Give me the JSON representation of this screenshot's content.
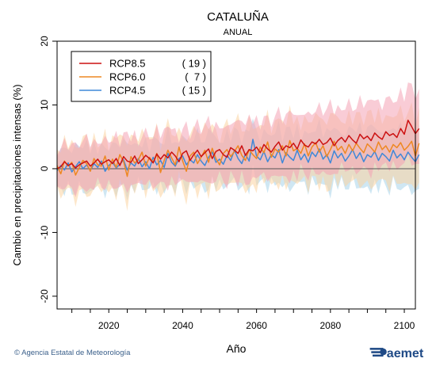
{
  "chart_data": {
    "type": "line",
    "title": "CATALUÑA",
    "subtitle": "ANUAL",
    "xlabel": "Año",
    "ylabel": "Cambio en precipitaciones intensas (%)",
    "xlim": [
      2006,
      2103
    ],
    "ylim": [
      -22,
      20
    ],
    "x_ticks": [
      2020,
      2040,
      2060,
      2080,
      2100
    ],
    "y_ticks": [
      20,
      10,
      0,
      -10,
      -20
    ],
    "legend_position": "top-left",
    "series": [
      {
        "name": "RCP8.5",
        "count": "( 19 )",
        "color": "#cc1111",
        "band_color": "#f4a3b4",
        "start_year": 2006,
        "values": [
          0.0,
          0.3,
          1.1,
          0.5,
          0.8,
          0.1,
          0.6,
          0.9,
          1.2,
          0.4,
          0.9,
          1.5,
          0.7,
          1.1,
          1.4,
          0.8,
          1.6,
          0.5,
          1.9,
          1.2,
          1.0,
          2.0,
          0.8,
          1.4,
          2.1,
          1.6,
          0.9,
          2.3,
          1.5,
          2.2,
          1.7,
          2.6,
          2.0,
          1.1,
          2.4,
          2.8,
          1.3,
          2.2,
          2.9,
          1.9,
          2.5,
          3.1,
          1.6,
          2.7,
          3.0,
          2.2,
          1.8,
          3.3,
          2.9,
          2.4,
          3.6,
          2.1,
          3.0,
          2.8,
          3.4,
          2.5,
          3.8,
          3.1,
          2.6,
          3.5,
          4.2,
          2.9,
          3.6,
          3.3,
          4.0,
          3.1,
          4.5,
          3.7,
          3.4,
          4.2,
          3.9,
          4.6,
          3.8,
          4.1,
          4.8,
          3.6,
          4.4,
          4.9,
          4.2,
          5.2,
          4.5,
          4.0,
          5.4,
          4.7,
          5.1,
          4.4,
          5.6,
          5.0,
          4.6,
          5.8,
          5.2,
          5.5,
          4.9,
          6.3,
          5.4,
          7.6,
          6.6,
          5.5,
          6.3
        ]
      },
      {
        "name": "RCP6.0",
        "count": "(  7 )",
        "color": "#ee8822",
        "band_color": "#fcd3a0",
        "start_year": 2006,
        "values": [
          0.5,
          -0.8,
          1.2,
          0.4,
          1.0,
          -1.0,
          0.2,
          1.3,
          0.8,
          -0.4,
          1.6,
          0.6,
          0.4,
          2.0,
          -0.2,
          1.5,
          0.2,
          2.2,
          1.1,
          -1.2,
          1.9,
          0.9,
          1.4,
          2.6,
          0.4,
          1.8,
          1.0,
          2.4,
          -0.6,
          1.3,
          2.9,
          1.7,
          0.6,
          3.4,
          1.2,
          -0.4,
          2.0,
          2.6,
          0.8,
          1.8,
          2.9,
          1.0,
          3.2,
          1.6,
          0.6,
          2.4,
          3.0,
          1.9,
          2.7,
          3.6,
          2.1,
          1.3,
          3.0,
          2.2,
          1.6,
          3.4,
          2.5,
          4.2,
          1.8,
          3.1,
          2.6,
          3.6,
          2.0,
          4.4,
          2.8,
          3.2,
          2.4,
          3.9,
          2.0,
          3.4,
          4.1,
          2.6,
          3.6,
          1.9,
          3.0,
          4.3,
          2.9,
          3.5,
          2.4,
          3.8,
          2.8,
          4.0,
          3.2,
          2.5,
          3.9,
          3.3,
          2.6,
          4.2,
          3.0,
          3.6,
          2.6,
          3.8,
          3.3,
          4.1,
          2.9,
          3.5,
          4.3,
          2.0,
          4.0
        ]
      },
      {
        "name": "RCP4.5",
        "count": "( 15 )",
        "color": "#3f88d8",
        "band_color": "#a8d4ea",
        "start_year": 2006,
        "values": [
          -0.3,
          0.5,
          -0.2,
          0.9,
          -0.5,
          0.3,
          1.1,
          0.0,
          0.6,
          -0.3,
          0.8,
          0.2,
          1.2,
          -0.4,
          0.5,
          1.0,
          0.1,
          0.7,
          1.4,
          -0.2,
          0.9,
          0.4,
          1.6,
          0.3,
          1.1,
          0.0,
          1.8,
          0.6,
          1.3,
          0.2,
          2.4,
          1.0,
          0.4,
          1.6,
          2.0,
          0.6,
          1.4,
          0.9,
          2.2,
          1.2,
          0.5,
          1.8,
          2.6,
          1.0,
          1.5,
          0.7,
          2.1,
          1.3,
          2.9,
          1.6,
          0.8,
          2.3,
          1.2,
          4.6,
          2.0,
          1.4,
          2.7,
          1.1,
          2.2,
          1.7,
          3.0,
          0.9,
          2.5,
          1.8,
          1.3,
          2.9,
          1.4,
          2.3,
          1.0,
          2.6,
          1.9,
          3.1,
          1.5,
          2.2,
          0.9,
          2.8,
          1.7,
          2.4,
          1.2,
          2.0,
          3.0,
          1.6,
          2.5,
          1.1,
          2.2,
          1.8,
          2.7,
          1.3,
          2.4,
          1.9,
          1.2,
          2.9,
          1.7,
          2.3,
          1.4,
          2.6,
          1.8,
          1.1,
          2.2
        ]
      }
    ]
  },
  "footer": {
    "credit": "© Agencia Estatal de Meteorología",
    "logo_text": "aemet"
  }
}
